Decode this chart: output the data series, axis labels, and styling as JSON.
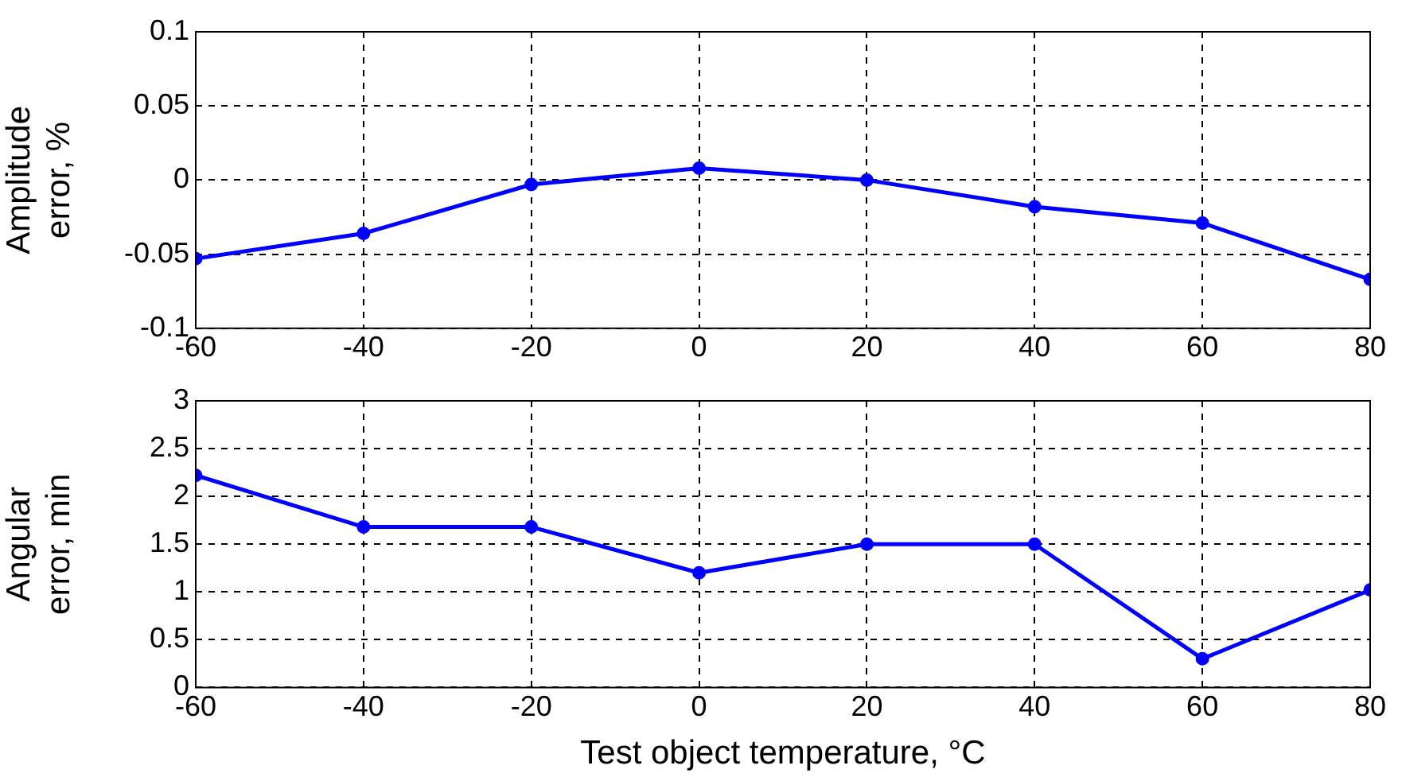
{
  "chart_data": [
    {
      "type": "line",
      "ylabel": "Amplitude error, %",
      "x": [
        -60,
        -40,
        -20,
        0,
        20,
        40,
        60,
        80
      ],
      "xlim": [
        -60,
        80
      ],
      "xticks": [
        -60,
        -40,
        -20,
        0,
        20,
        40,
        60,
        80
      ],
      "ylim": [
        -0.1,
        0.1
      ],
      "yticks": [
        -0.1,
        -0.05,
        0,
        0.05,
        0.1
      ],
      "grid": true,
      "legend": false,
      "marker": "circle",
      "line_style": "solid",
      "series": [
        {
          "color": "#0000ff",
          "values": [
            -0.053,
            -0.036,
            -0.003,
            0.008,
            0,
            -0.018,
            -0.029,
            -0.067
          ]
        }
      ]
    },
    {
      "type": "line",
      "ylabel": "Angular error, min",
      "xlabel": "Test object temperature, °C",
      "x": [
        -60,
        -40,
        -20,
        0,
        20,
        40,
        60,
        80
      ],
      "xlim": [
        -60,
        80
      ],
      "xticks": [
        -60,
        -40,
        -20,
        0,
        20,
        40,
        60,
        80
      ],
      "ylim": [
        0,
        3
      ],
      "yticks": [
        0,
        0.5,
        1,
        1.5,
        2,
        2.5,
        3
      ],
      "grid": true,
      "legend": false,
      "marker": "circle",
      "line_style": "solid",
      "series": [
        {
          "color": "#0000ff",
          "values": [
            2.22,
            1.68,
            1.68,
            1.2,
            1.5,
            1.5,
            0.3,
            1.02
          ]
        }
      ]
    }
  ]
}
